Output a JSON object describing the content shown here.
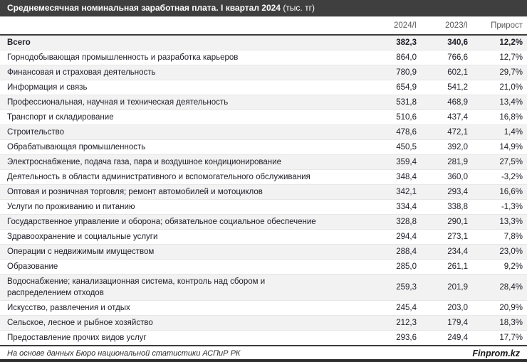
{
  "header": {
    "title": "Среднемесячная номинальная заработная плата. I квартал 2024",
    "unit": "(тыс. тг)"
  },
  "table": {
    "columns": [
      "2024/I",
      "2023/I",
      "Прирост"
    ],
    "rows": [
      {
        "name": "Всего",
        "v2024": "382,3",
        "v2023": "340,6",
        "growth": "12,2%",
        "bold": true
      },
      {
        "name": "Горнодобывающая промышленность и разработка карьеров",
        "v2024": "864,0",
        "v2023": "766,6",
        "growth": "12,7%",
        "bold": false
      },
      {
        "name": "Финансовая и страховая деятельность",
        "v2024": "780,9",
        "v2023": "602,1",
        "growth": "29,7%",
        "bold": false
      },
      {
        "name": "Информация и связь",
        "v2024": "654,9",
        "v2023": "541,2",
        "growth": "21,0%",
        "bold": false
      },
      {
        "name": "Профессиональная, научная и техническая деятельность",
        "v2024": "531,8",
        "v2023": "468,9",
        "growth": "13,4%",
        "bold": false
      },
      {
        "name": "Транспорт и складирование",
        "v2024": "510,6",
        "v2023": "437,4",
        "growth": "16,8%",
        "bold": false
      },
      {
        "name": "Строительство",
        "v2024": "478,6",
        "v2023": "472,1",
        "growth": "1,4%",
        "bold": false
      },
      {
        "name": "Обрабатывающая промышленность",
        "v2024": "450,5",
        "v2023": "392,0",
        "growth": "14,9%",
        "bold": false
      },
      {
        "name": "Электроснабжение, подача газа, пара и воздушное кондиционирование",
        "v2024": "359,4",
        "v2023": "281,9",
        "growth": "27,5%",
        "bold": false
      },
      {
        "name": "Деятельность в области административного и вспомогательного обслуживания",
        "v2024": "348,4",
        "v2023": "360,0",
        "growth": "-3,2%",
        "bold": false
      },
      {
        "name": "Оптовая и розничная торговля; ремонт автомобилей и мотоциклов",
        "v2024": "342,1",
        "v2023": "293,4",
        "growth": "16,6%",
        "bold": false
      },
      {
        "name": "Услуги по проживанию и питанию",
        "v2024": "334,4",
        "v2023": "338,8",
        "growth": "-1,3%",
        "bold": false
      },
      {
        "name": "Государственное управление и оборона; обязательное социальное обеспечение",
        "v2024": "328,8",
        "v2023": "290,1",
        "growth": "13,3%",
        "bold": false
      },
      {
        "name": "Здравоохранение и социальные услуги",
        "v2024": "294,4",
        "v2023": "273,1",
        "growth": "7,8%",
        "bold": false
      },
      {
        "name": "Операции с недвижимым имуществом",
        "v2024": "288,4",
        "v2023": "234,4",
        "growth": "23,0%",
        "bold": false
      },
      {
        "name": "Образование",
        "v2024": "285,0",
        "v2023": "261,1",
        "growth": "9,2%",
        "bold": false
      },
      {
        "name": "Водоснабжение; канализационная система, контроль над сбором и распределением отходов",
        "v2024": "259,3",
        "v2023": "201,9",
        "growth": "28,4%",
        "bold": false
      },
      {
        "name": "Искусство, развлечения и отдых",
        "v2024": "245,4",
        "v2023": "203,0",
        "growth": "20,9%",
        "bold": false
      },
      {
        "name": "Сельское, лесное и рыбное хозяйство",
        "v2024": "212,3",
        "v2023": "179,4",
        "growth": "18,3%",
        "bold": false
      },
      {
        "name": "Предоставление прочих видов услуг",
        "v2024": "293,6",
        "v2023": "249,4",
        "growth": "17,7%",
        "bold": false
      }
    ]
  },
  "footer": {
    "source": "На основе данных Бюро национальной статистики АСПиР РК",
    "brand": "Finprom.kz"
  },
  "colors": {
    "titlebar_bg": "#3f3f3f",
    "titlebar_text": "#ffffff",
    "stripe": "#f2f2f2",
    "header_text": "#595959",
    "row_text": "#20202a",
    "heavy_border": "#3c3c3c"
  },
  "chart_data": {
    "type": "table",
    "title": "Среднемесячная номинальная заработная плата. I квартал 2024 (тыс. тг)",
    "columns": [
      "2024/I",
      "2023/I",
      "Прирост"
    ],
    "categories": [
      "Всего",
      "Горнодобывающая промышленность и разработка карьеров",
      "Финансовая и страховая деятельность",
      "Информация и связь",
      "Профессиональная, научная и техническая деятельность",
      "Транспорт и складирование",
      "Строительство",
      "Обрабатывающая промышленность",
      "Электроснабжение, подача газа, пара и воздушное кондиционирование",
      "Деятельность в области административного и вспомогательного обслуживания",
      "Оптовая и розничная торговля; ремонт автомобилей и мотоциклов",
      "Услуги по проживанию и питанию",
      "Государственное управление и оборона; обязательное социальное обеспечение",
      "Здравоохранение и социальные услуги",
      "Операции с недвижимым имуществом",
      "Образование",
      "Водоснабжение; канализационная система, контроль над сбором и распределением отходов",
      "Искусство, развлечения и отдых",
      "Сельское, лесное и рыбное хозяйство",
      "Предоставление прочих видов услуг"
    ],
    "series": [
      {
        "name": "2024/I",
        "values": [
          382.3,
          864.0,
          780.9,
          654.9,
          531.8,
          510.6,
          478.6,
          450.5,
          359.4,
          348.4,
          342.1,
          334.4,
          328.8,
          294.4,
          288.4,
          285.0,
          259.3,
          245.4,
          212.3,
          293.6
        ]
      },
      {
        "name": "2023/I",
        "values": [
          340.6,
          766.6,
          602.1,
          541.2,
          468.9,
          437.4,
          472.1,
          392.0,
          281.9,
          360.0,
          293.4,
          338.8,
          290.1,
          273.1,
          234.4,
          261.1,
          201.9,
          203.0,
          179.4,
          249.4
        ]
      },
      {
        "name": "Прирост, %",
        "values": [
          12.2,
          12.7,
          29.7,
          21.0,
          13.4,
          16.8,
          1.4,
          14.9,
          27.5,
          -3.2,
          16.6,
          -1.3,
          13.3,
          7.8,
          23.0,
          9.2,
          28.4,
          20.9,
          18.3,
          17.7
        ]
      }
    ]
  }
}
